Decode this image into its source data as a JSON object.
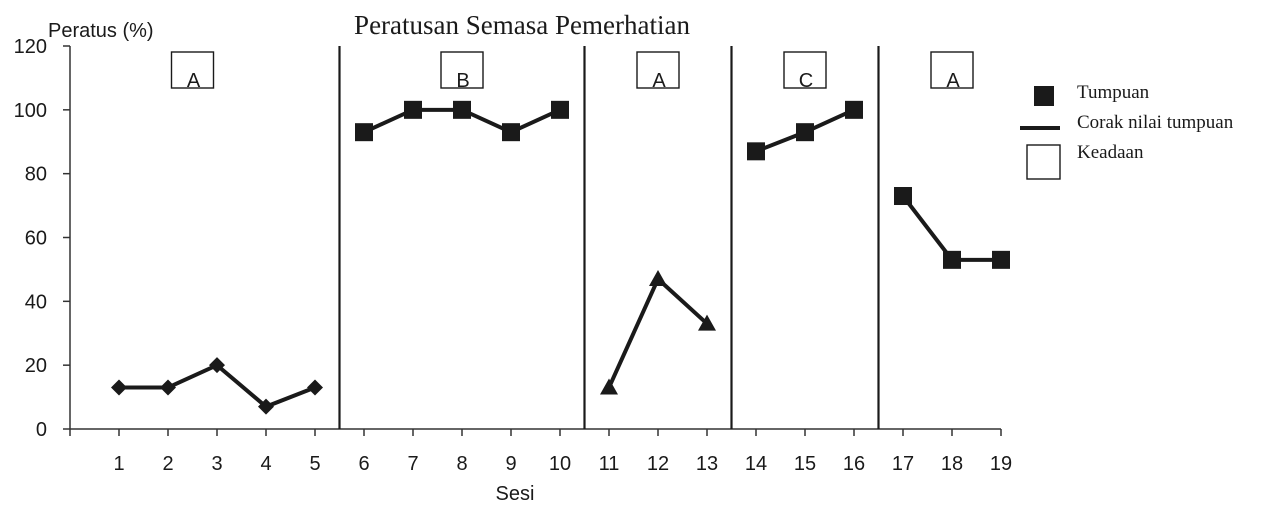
{
  "chart_data": {
    "type": "line",
    "title": "Peratusan Semasa Pemerhatian",
    "ylabel": "Peratus (%)",
    "xlabel": "Sesi",
    "ylim": [
      0,
      120
    ],
    "y_ticks": [
      "0",
      "20",
      "40",
      "60",
      "80",
      "100",
      "120"
    ],
    "x_ticks": [
      "1",
      "2",
      "3",
      "4",
      "5",
      "6",
      "7",
      "8",
      "9",
      "10",
      "11",
      "12",
      "13",
      "14",
      "15",
      "16",
      "17",
      "18",
      "19"
    ],
    "grid": false,
    "legend_position": "right",
    "phase_dividers_between_sessions": [
      5.5,
      10.5,
      13.5,
      16.5
    ],
    "phases": [
      {
        "label": "A",
        "sessions": [
          1,
          2,
          3,
          4,
          5
        ],
        "label_at_session": 2.5
      },
      {
        "label": "B",
        "sessions": [
          6,
          7,
          8,
          9,
          10
        ],
        "label_at_session": 8
      },
      {
        "label": "A",
        "sessions": [
          11,
          12,
          13
        ],
        "label_at_session": 12
      },
      {
        "label": "C",
        "sessions": [
          14,
          15,
          16
        ],
        "label_at_session": 15
      },
      {
        "label": "A",
        "sessions": [
          17,
          18,
          19
        ],
        "label_at_session": 18
      }
    ],
    "series": [
      {
        "x": [
          1,
          2,
          3,
          4,
          5
        ],
        "y": [
          13,
          13,
          20,
          7,
          13
        ],
        "marker": "diamond"
      },
      {
        "x": [
          6,
          7,
          8,
          9,
          10
        ],
        "y": [
          93,
          100,
          100,
          93,
          100
        ],
        "marker": "square"
      },
      {
        "x": [
          11,
          12,
          13
        ],
        "y": [
          13,
          47,
          33
        ],
        "marker": "triangle"
      },
      {
        "x": [
          14,
          15,
          16
        ],
        "y": [
          87,
          93,
          100
        ],
        "marker": "square"
      },
      {
        "x": [
          17,
          18,
          19
        ],
        "y": [
          73,
          53,
          53
        ],
        "marker": "square"
      }
    ],
    "legend": [
      {
        "label": "Tumpuan",
        "symbol": "filled-square"
      },
      {
        "label": "Corak nilai tumpuan",
        "symbol": "line"
      },
      {
        "label": "Keadaan",
        "symbol": "empty-box"
      }
    ],
    "colors": {
      "line": "#1a1a1a",
      "marker": "#1a1a1a",
      "axis": "#333333",
      "background": "#ffffff"
    }
  }
}
